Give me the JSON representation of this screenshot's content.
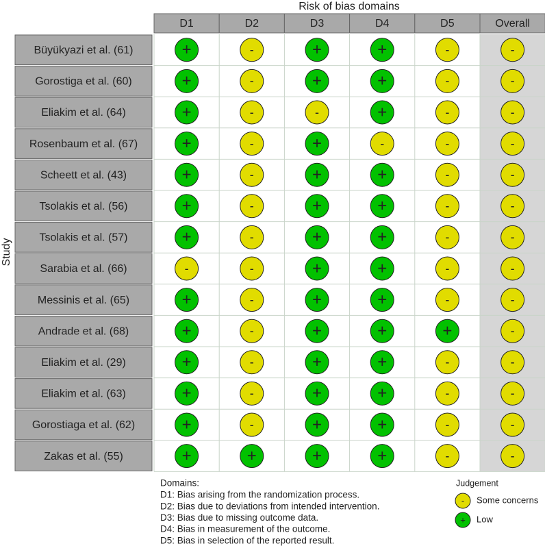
{
  "title": "Risk of bias domains",
  "y_label": "Study",
  "columns": [
    "D1",
    "D2",
    "D3",
    "D4",
    "D5",
    "Overall"
  ],
  "rows": [
    {
      "study": "Büyükyazi et al. (61)",
      "judgements": [
        "+",
        "-",
        "+",
        "+",
        "-",
        "-"
      ]
    },
    {
      "study": "Gorostiga et al. (60)",
      "judgements": [
        "+",
        "-",
        "+",
        "+",
        "-",
        "-"
      ]
    },
    {
      "study": "Eliakim et al. (64)",
      "judgements": [
        "+",
        "-",
        "-",
        "+",
        "-",
        "-"
      ]
    },
    {
      "study": "Rosenbaum et al. (67)",
      "judgements": [
        "+",
        "-",
        "+",
        "-",
        "-",
        "-"
      ]
    },
    {
      "study": "Scheett et al. (43)",
      "judgements": [
        "+",
        "-",
        "+",
        "+",
        "-",
        "-"
      ]
    },
    {
      "study": "Tsolakis et al. (56)",
      "judgements": [
        "+",
        "-",
        "+",
        "+",
        "-",
        "-"
      ]
    },
    {
      "study": "Tsolakis et al. (57)",
      "judgements": [
        "+",
        "-",
        "+",
        "+",
        "-",
        "-"
      ]
    },
    {
      "study": "Sarabia et al. (66)",
      "judgements": [
        "-",
        "-",
        "+",
        "+",
        "-",
        "-"
      ]
    },
    {
      "study": "Messinis et al. (65)",
      "judgements": [
        "+",
        "-",
        "+",
        "+",
        "-",
        "-"
      ]
    },
    {
      "study": "Andrade et al. (68)",
      "judgements": [
        "+",
        "-",
        "+",
        "+",
        "+",
        "-"
      ]
    },
    {
      "study": "Eliakim et al. (29)",
      "judgements": [
        "+",
        "-",
        "+",
        "+",
        "-",
        "-"
      ]
    },
    {
      "study": "Eliakim et al. (63)",
      "judgements": [
        "+",
        "-",
        "+",
        "+",
        "-",
        "-"
      ]
    },
    {
      "study": "Gorostiaga et al. (62)",
      "judgements": [
        "+",
        "-",
        "+",
        "+",
        "-",
        "-"
      ]
    },
    {
      "study": "Zakas et al. (55)",
      "judgements": [
        "+",
        "+",
        "+",
        "+",
        "-",
        "-"
      ]
    }
  ],
  "legend": {
    "domains_title": "Domains:",
    "domains": [
      "D1: Bias arising from the randomization process.",
      "D2: Bias due to deviations from intended intervention.",
      "D3: Bias due to missing outcome data.",
      "D4: Bias in measurement of the outcome.",
      "D5: Bias in selection of the reported result."
    ],
    "judgement_title": "Judgement",
    "items": [
      {
        "symbol": "-",
        "label": "Some concerns",
        "color": "#e1dc00"
      },
      {
        "symbol": "+",
        "label": "Low",
        "color": "#02c100"
      }
    ]
  }
}
